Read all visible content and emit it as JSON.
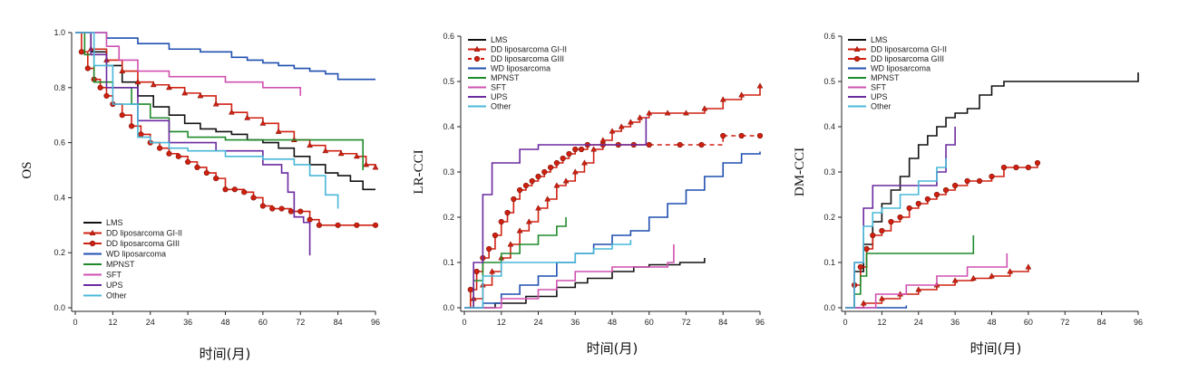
{
  "chart_data": [
    {
      "type": "line",
      "ylabel": "OS",
      "xlabel": "时间(月)",
      "xlim": [
        0,
        96
      ],
      "ylim": [
        0,
        1.0
      ],
      "xticks": [
        "0",
        "12",
        "24",
        "36",
        "48",
        "60",
        "72",
        "84",
        "96"
      ],
      "yticks": [
        "0.0",
        "0.2",
        "0.4",
        "0.6",
        "0.8",
        "1.0"
      ],
      "legend_position": "bottom-left",
      "series": [
        {
          "name": "LMS",
          "color": "#111111",
          "marker": "none",
          "x": [
            0,
            5,
            10,
            15,
            20,
            25,
            30,
            35,
            40,
            45,
            50,
            55,
            60,
            65,
            70,
            75,
            80,
            84,
            88,
            92,
            96
          ],
          "y": [
            1.0,
            0.93,
            0.88,
            0.82,
            0.77,
            0.73,
            0.7,
            0.67,
            0.65,
            0.64,
            0.63,
            0.61,
            0.6,
            0.58,
            0.55,
            0.52,
            0.49,
            0.48,
            0.46,
            0.43,
            0.43
          ]
        },
        {
          "name": "DD liposarcoma GI-II",
          "color": "#d02010",
          "marker": "triangle",
          "x": [
            0,
            5,
            10,
            15,
            20,
            25,
            30,
            35,
            40,
            45,
            50,
            55,
            60,
            65,
            70,
            75,
            80,
            85,
            90,
            93,
            96
          ],
          "y": [
            1.0,
            0.94,
            0.9,
            0.86,
            0.82,
            0.81,
            0.8,
            0.78,
            0.77,
            0.74,
            0.71,
            0.69,
            0.67,
            0.64,
            0.61,
            0.59,
            0.57,
            0.56,
            0.55,
            0.52,
            0.51
          ]
        },
        {
          "name": "DD liposarcoma GIII",
          "color": "#d02010",
          "marker": "circle",
          "x": [
            0,
            2,
            4,
            6,
            8,
            10,
            12,
            15,
            18,
            21,
            24,
            27,
            30,
            33,
            36,
            39,
            42,
            45,
            48,
            51,
            54,
            57,
            60,
            63,
            66,
            69,
            72,
            75,
            78,
            84,
            90,
            96
          ],
          "y": [
            1.0,
            0.93,
            0.87,
            0.83,
            0.8,
            0.77,
            0.74,
            0.7,
            0.66,
            0.63,
            0.6,
            0.58,
            0.56,
            0.55,
            0.53,
            0.51,
            0.49,
            0.47,
            0.43,
            0.43,
            0.42,
            0.4,
            0.37,
            0.36,
            0.36,
            0.35,
            0.35,
            0.32,
            0.3,
            0.3,
            0.3,
            0.3
          ]
        },
        {
          "name": "WD liposarcoma",
          "color": "#1f4fb0",
          "marker": "none",
          "x": [
            0,
            10,
            20,
            30,
            40,
            50,
            55,
            60,
            65,
            70,
            75,
            80,
            84,
            90,
            96
          ],
          "y": [
            1.0,
            0.98,
            0.96,
            0.94,
            0.93,
            0.91,
            0.9,
            0.89,
            0.88,
            0.87,
            0.86,
            0.85,
            0.83,
            0.83,
            0.83
          ]
        },
        {
          "name": "MPNST",
          "color": "#1f8a2a",
          "marker": "none",
          "x": [
            0,
            3,
            6,
            12,
            18,
            24,
            30,
            36,
            48,
            60,
            72,
            84,
            92
          ],
          "y": [
            1.0,
            0.92,
            0.82,
            0.8,
            0.74,
            0.69,
            0.64,
            0.62,
            0.61,
            0.61,
            0.61,
            0.61,
            0.5
          ]
        },
        {
          "name": "SFT",
          "color": "#d050b0",
          "marker": "none",
          "x": [
            0,
            10,
            14,
            20,
            30,
            48,
            60,
            72
          ],
          "y": [
            1.0,
            0.95,
            0.9,
            0.86,
            0.84,
            0.82,
            0.8,
            0.77
          ]
        },
        {
          "name": "UPS",
          "color": "#6a2aa0",
          "marker": "none",
          "x": [
            0,
            5,
            10,
            20,
            30,
            45,
            55,
            60,
            66,
            68,
            70,
            73,
            75
          ],
          "y": [
            1.0,
            0.92,
            0.8,
            0.68,
            0.6,
            0.57,
            0.57,
            0.52,
            0.49,
            0.42,
            0.33,
            0.31,
            0.19
          ]
        },
        {
          "name": "Other",
          "color": "#48b8d8",
          "marker": "none",
          "x": [
            0,
            6,
            12,
            20,
            24,
            30,
            36,
            48,
            60,
            70,
            75,
            80,
            84
          ],
          "y": [
            1.0,
            0.88,
            0.74,
            0.62,
            0.6,
            0.58,
            0.57,
            0.55,
            0.54,
            0.52,
            0.48,
            0.41,
            0.36
          ]
        }
      ]
    },
    {
      "type": "line",
      "ylabel": "LR-CCI",
      "xlabel": "时间(月)",
      "xlim": [
        0,
        96
      ],
      "ylim": [
        0,
        0.6
      ],
      "xticks": [
        "0",
        "12",
        "24",
        "36",
        "48",
        "60",
        "72",
        "84",
        "96"
      ],
      "yticks": [
        "0.0",
        "0.1",
        "0.2",
        "0.3",
        "0.4",
        "0.5",
        "0.6"
      ],
      "legend_position": "top-left",
      "series": [
        {
          "name": "LMS",
          "color": "#111111",
          "marker": "none",
          "x": [
            0,
            10,
            20,
            30,
            36,
            40,
            48,
            55,
            60,
            70,
            78
          ],
          "y": [
            0,
            0.01,
            0.025,
            0.045,
            0.055,
            0.065,
            0.08,
            0.09,
            0.095,
            0.1,
            0.11
          ]
        },
        {
          "name": "DD liposarcoma GI-II",
          "color": "#d02010",
          "marker": "triangle",
          "x": [
            0,
            3,
            6,
            9,
            12,
            15,
            18,
            21,
            24,
            27,
            30,
            33,
            36,
            39,
            42,
            45,
            48,
            51,
            54,
            57,
            60,
            66,
            72,
            78,
            84,
            90,
            96
          ],
          "y": [
            0,
            0.02,
            0.05,
            0.08,
            0.11,
            0.14,
            0.17,
            0.19,
            0.22,
            0.24,
            0.27,
            0.28,
            0.3,
            0.32,
            0.35,
            0.37,
            0.39,
            0.4,
            0.41,
            0.42,
            0.43,
            0.43,
            0.43,
            0.44,
            0.46,
            0.47,
            0.49
          ]
        },
        {
          "name": "DD liposarcoma GIII",
          "color": "#d02010",
          "marker": "circle",
          "dashed_from": 60,
          "x": [
            0,
            2,
            4,
            6,
            8,
            10,
            12,
            14,
            16,
            18,
            20,
            22,
            24,
            26,
            28,
            30,
            32,
            34,
            36,
            38,
            40,
            45,
            50,
            55,
            60,
            70,
            77,
            84,
            90,
            96
          ],
          "y": [
            0,
            0.04,
            0.08,
            0.11,
            0.13,
            0.16,
            0.19,
            0.21,
            0.24,
            0.26,
            0.27,
            0.28,
            0.29,
            0.3,
            0.31,
            0.32,
            0.33,
            0.34,
            0.35,
            0.35,
            0.36,
            0.36,
            0.36,
            0.36,
            0.36,
            0.36,
            0.36,
            0.38,
            0.38,
            0.38
          ]
        },
        {
          "name": "WD liposarcoma",
          "color": "#1f4fb0",
          "marker": "none",
          "x": [
            0,
            6,
            12,
            18,
            24,
            30,
            36,
            42,
            48,
            54,
            60,
            66,
            72,
            78,
            84,
            90,
            96
          ],
          "y": [
            0,
            0.01,
            0.03,
            0.05,
            0.07,
            0.1,
            0.12,
            0.14,
            0.16,
            0.17,
            0.2,
            0.23,
            0.26,
            0.29,
            0.32,
            0.34,
            0.345
          ]
        },
        {
          "name": "MPNST",
          "color": "#1f8a2a",
          "marker": "none",
          "x": [
            0,
            3,
            6,
            9,
            12,
            18,
            24,
            30,
            33
          ],
          "y": [
            0,
            0.06,
            0.1,
            0.1,
            0.12,
            0.14,
            0.16,
            0.18,
            0.2
          ]
        },
        {
          "name": "SFT",
          "color": "#d050b0",
          "marker": "none",
          "x": [
            0,
            12,
            24,
            30,
            36,
            48,
            60,
            66,
            68
          ],
          "y": [
            0,
            0.02,
            0.04,
            0.06,
            0.08,
            0.09,
            0.09,
            0.1,
            0.14
          ]
        },
        {
          "name": "UPS",
          "color": "#6a2aa0",
          "marker": "none",
          "x": [
            0,
            3,
            6,
            9,
            12,
            18,
            24,
            36,
            48,
            56,
            59
          ],
          "y": [
            0,
            0.1,
            0.25,
            0.32,
            0.32,
            0.35,
            0.36,
            0.36,
            0.36,
            0.36,
            0.42
          ]
        },
        {
          "name": "Other",
          "color": "#48b8d8",
          "marker": "none",
          "x": [
            0,
            6,
            12,
            24,
            36,
            42,
            48,
            54
          ],
          "y": [
            0,
            0.07,
            0.1,
            0.1,
            0.12,
            0.13,
            0.14,
            0.15
          ]
        }
      ]
    },
    {
      "type": "line",
      "ylabel": "DM-CCI",
      "xlabel": "时间(月)",
      "xlim": [
        0,
        96
      ],
      "ylim": [
        0,
        0.6
      ],
      "xticks": [
        "0",
        "12",
        "24",
        "36",
        "48",
        "60",
        "72",
        "84",
        "96"
      ],
      "yticks": [
        "0.0",
        "0.1",
        "0.2",
        "0.3",
        "0.4",
        "0.5",
        "0.6"
      ],
      "legend_position": "top-left",
      "series": [
        {
          "name": "LMS",
          "color": "#111111",
          "marker": "none",
          "x": [
            0,
            3,
            6,
            9,
            12,
            15,
            18,
            21,
            24,
            27,
            30,
            33,
            36,
            40,
            44,
            48,
            52,
            60,
            72,
            84,
            96
          ],
          "y": [
            0,
            0.08,
            0.14,
            0.19,
            0.23,
            0.26,
            0.29,
            0.33,
            0.36,
            0.38,
            0.4,
            0.42,
            0.43,
            0.44,
            0.47,
            0.49,
            0.5,
            0.5,
            0.5,
            0.5,
            0.52
          ]
        },
        {
          "name": "DD liposarcoma GI-II",
          "color": "#d02010",
          "marker": "triangle",
          "x": [
            0,
            6,
            12,
            18,
            24,
            30,
            36,
            42,
            48,
            54,
            60
          ],
          "y": [
            0,
            0.01,
            0.02,
            0.03,
            0.04,
            0.05,
            0.06,
            0.065,
            0.07,
            0.08,
            0.09
          ]
        },
        {
          "name": "DD liposarcoma GIII",
          "color": "#d02010",
          "marker": "circle",
          "x": [
            0,
            3,
            5,
            7,
            9,
            12,
            15,
            18,
            21,
            24,
            27,
            30,
            33,
            36,
            40,
            44,
            48,
            52,
            56,
            60,
            63
          ],
          "y": [
            0,
            0.05,
            0.09,
            0.13,
            0.16,
            0.17,
            0.19,
            0.2,
            0.22,
            0.23,
            0.24,
            0.25,
            0.26,
            0.27,
            0.28,
            0.28,
            0.29,
            0.31,
            0.31,
            0.31,
            0.32
          ]
        },
        {
          "name": "WD liposarcoma",
          "color": "#1f4fb0",
          "marker": "none",
          "x": [
            0,
            10,
            20
          ],
          "y": [
            0,
            0.0,
            0.005
          ]
        },
        {
          "name": "MPNST",
          "color": "#1f8a2a",
          "marker": "none",
          "x": [
            0,
            3,
            5,
            7,
            12,
            24,
            36,
            42
          ],
          "y": [
            0,
            0.03,
            0.07,
            0.12,
            0.12,
            0.12,
            0.12,
            0.16
          ]
        },
        {
          "name": "SFT",
          "color": "#d050b0",
          "marker": "none",
          "x": [
            0,
            10,
            20,
            30,
            40,
            50,
            53
          ],
          "y": [
            0,
            0.03,
            0.05,
            0.07,
            0.09,
            0.09,
            0.12
          ]
        },
        {
          "name": "UPS",
          "color": "#6a2aa0",
          "marker": "none",
          "x": [
            0,
            3,
            6,
            9,
            12,
            18,
            24,
            30,
            33,
            36
          ],
          "y": [
            0,
            0.1,
            0.22,
            0.27,
            0.27,
            0.27,
            0.27,
            0.3,
            0.36,
            0.4
          ]
        },
        {
          "name": "Other",
          "color": "#48b8d8",
          "marker": "none",
          "x": [
            0,
            3,
            6,
            9,
            12,
            18,
            24,
            30,
            33
          ],
          "y": [
            0,
            0.1,
            0.18,
            0.21,
            0.22,
            0.25,
            0.28,
            0.31,
            0.33
          ]
        }
      ]
    }
  ]
}
